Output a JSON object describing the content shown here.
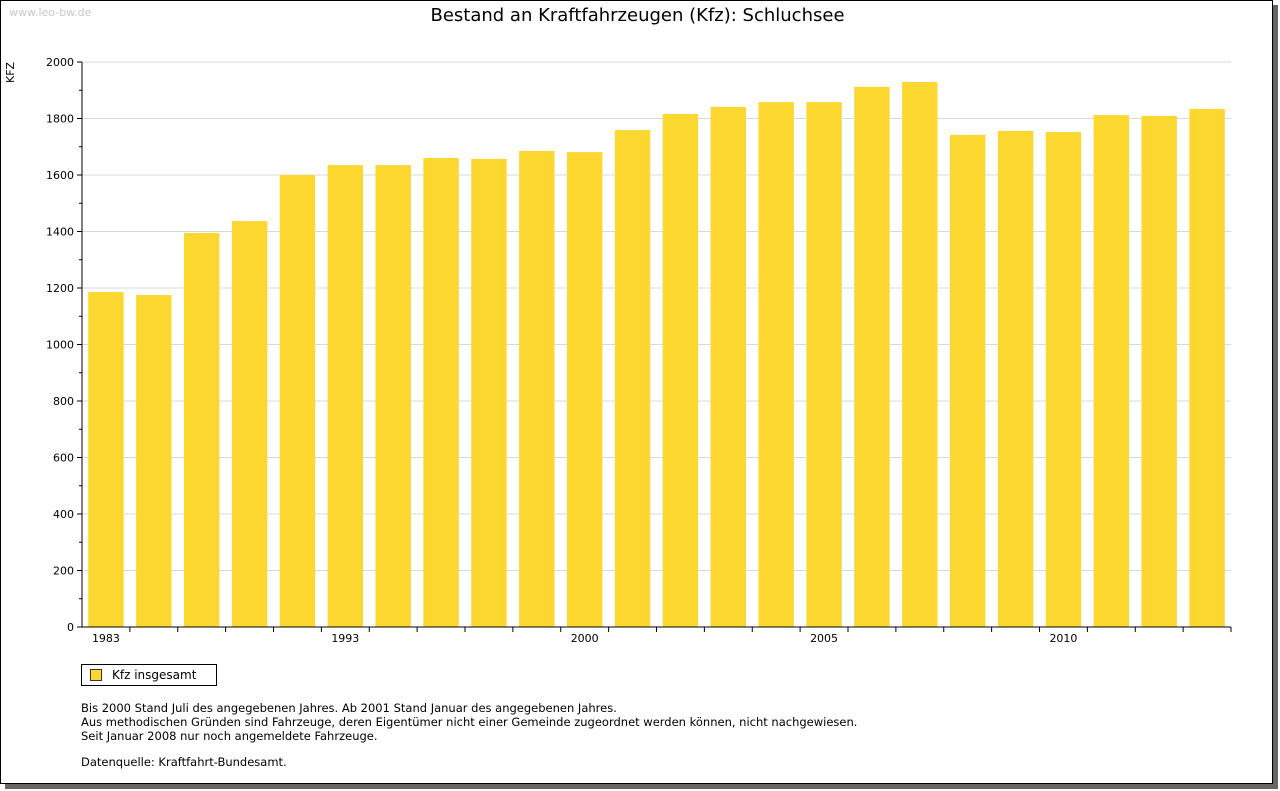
{
  "watermark": "www.leo-bw.de",
  "chart_data": {
    "type": "bar",
    "title": "Bestand an Kraftfahrzeugen (Kfz): Schluchsee",
    "ylabel": "KFZ",
    "xlabel": "",
    "ylim": [
      0,
      2000
    ],
    "yticks": [
      0,
      200,
      400,
      600,
      800,
      1000,
      1200,
      1400,
      1600,
      1800,
      2000
    ],
    "grid": true,
    "x_tick_labels": [
      "1983",
      "",
      "",
      "",
      "",
      "1993",
      "",
      "",
      "",
      "",
      "2000",
      "",
      "",
      "",
      "",
      "2005",
      "",
      "",
      "",
      "",
      "2010",
      "",
      "",
      ""
    ],
    "series": [
      {
        "name": "Kfz insgesamt",
        "color": "#fcd72f",
        "values": [
          1186,
          1175,
          1395,
          1437,
          1600,
          1635,
          1635,
          1660,
          1657,
          1685,
          1681,
          1759,
          1816,
          1841,
          1858,
          1858,
          1912,
          1929,
          1742,
          1756,
          1752,
          1812,
          1809,
          1834
        ]
      }
    ],
    "legend": "bottom-left"
  },
  "notes": [
    "Bis 2000 Stand Juli des angegebenen Jahres. Ab 2001 Stand Januar des angegebenen Jahres.",
    "Aus methodischen Gründen sind Fahrzeuge, deren Eigentümer nicht einer Gemeinde zugeordnet werden können, nicht nachgewiesen.",
    "Seit Januar 2008 nur noch angemeldete Fahrzeuge."
  ],
  "source": "Datenquelle: Kraftfahrt-Bundesamt."
}
